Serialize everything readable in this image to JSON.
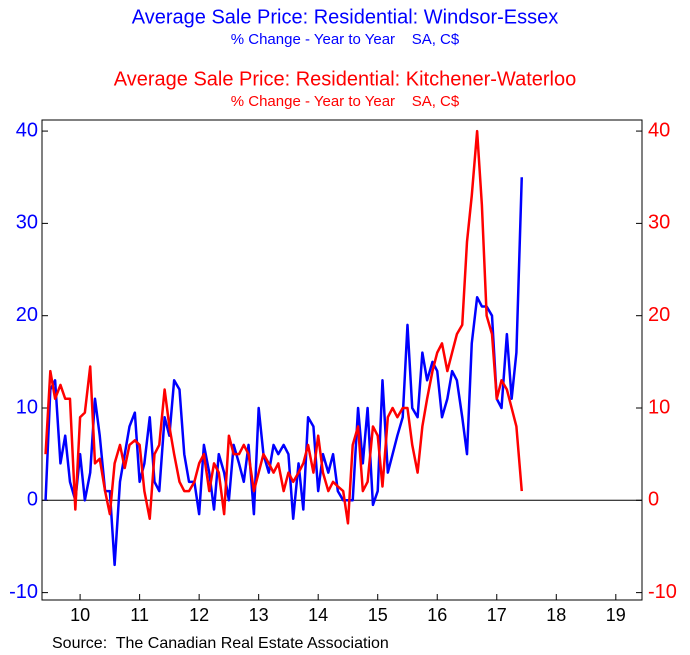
{
  "chart_data": {
    "type": "line",
    "source": "Source:  The Canadian Real Estate Association",
    "x": [
      2009.92,
      2010.0,
      2010.08,
      2010.17,
      2010.25,
      2010.33,
      2010.42,
      2010.5,
      2010.58,
      2010.67,
      2010.75,
      2010.83,
      2010.92,
      2011.0,
      2011.08,
      2011.17,
      2011.25,
      2011.33,
      2011.42,
      2011.5,
      2011.58,
      2011.67,
      2011.75,
      2011.83,
      2011.92,
      2012.0,
      2012.08,
      2012.17,
      2012.25,
      2012.33,
      2012.42,
      2012.5,
      2012.58,
      2012.67,
      2012.75,
      2012.83,
      2012.92,
      2013.0,
      2013.08,
      2013.17,
      2013.25,
      2013.33,
      2013.42,
      2013.5,
      2013.58,
      2013.67,
      2013.75,
      2013.83,
      2013.92,
      2014.0,
      2014.08,
      2014.17,
      2014.25,
      2014.33,
      2014.42,
      2014.5,
      2014.58,
      2014.67,
      2014.75,
      2014.83,
      2014.92,
      2015.0,
      2015.08,
      2015.17,
      2015.25,
      2015.33,
      2015.42,
      2015.5,
      2015.58,
      2015.67,
      2015.75,
      2015.83,
      2015.92,
      2016.0,
      2016.08,
      2016.17,
      2016.25,
      2016.33,
      2016.42,
      2016.5,
      2016.58,
      2016.67,
      2016.75,
      2016.83,
      2016.92,
      2017.0,
      2017.08,
      2017.17,
      2017.25,
      2017.33,
      2017.42,
      2017.5,
      2017.58,
      2017.67,
      2017.75,
      2017.83,
      2017.92
    ],
    "series": [
      {
        "name": "Average Sale Price: Residential: Windsor-Essex",
        "subtitle": "% Change - Year to Year    SA, C$",
        "color": "#0000ff",
        "axis": "y",
        "values": [
          0,
          12,
          13,
          4,
          7,
          2,
          0,
          5,
          0,
          3,
          11,
          7,
          1,
          1,
          -7,
          2,
          5,
          8,
          9.5,
          2,
          4,
          9,
          2,
          1,
          9,
          7,
          13,
          12,
          5,
          2,
          2,
          -1.5,
          6,
          3,
          -1,
          5,
          3,
          0,
          6,
          4,
          2,
          6,
          -1.5,
          10,
          5,
          3,
          6,
          5,
          6,
          5,
          -2,
          4,
          -1,
          9,
          8,
          1,
          5,
          3,
          5,
          1,
          0,
          0,
          0,
          10,
          4,
          10,
          -0.5,
          1,
          13,
          3,
          5,
          7,
          9,
          19,
          10,
          9,
          16,
          13,
          15,
          14,
          9,
          11,
          14,
          13,
          9,
          5,
          17,
          22,
          21,
          21,
          20,
          11,
          10,
          18,
          11,
          16,
          35
        ]
      },
      {
        "name": "Average Sale Price: Residential: Kitchener-Waterloo",
        "subtitle": "% Change - Year to Year    SA, C$",
        "color": "#ff0000",
        "axis": "y2",
        "values": [
          5,
          14,
          11,
          12.5,
          11,
          11,
          -1,
          9,
          9.5,
          14.5,
          4,
          4.5,
          1,
          -1.5,
          4,
          6,
          3.5,
          6,
          6.5,
          6,
          1,
          -2,
          5,
          6,
          12,
          8,
          5,
          2,
          1,
          1,
          2,
          4,
          5,
          1,
          4,
          3,
          -1.5,
          7,
          5,
          5,
          6,
          5,
          1,
          3,
          5,
          4,
          3,
          4,
          1,
          3,
          2,
          3,
          4,
          6,
          3,
          7,
          3,
          1,
          2,
          1.5,
          1,
          -2.5,
          6,
          8,
          1,
          2,
          8,
          7,
          1.5,
          9,
          10,
          9,
          10,
          10,
          6,
          3,
          8,
          11,
          14,
          16,
          17,
          14,
          16,
          18,
          19,
          28,
          33,
          40,
          32,
          20,
          18,
          11,
          13,
          12,
          10,
          8,
          1
        ]
      }
    ],
    "xlim": [
      2009.86,
      2019.94
    ],
    "xticks": [
      {
        "value": 2010.5,
        "label": "10"
      },
      {
        "value": 2011.5,
        "label": "11"
      },
      {
        "value": 2012.5,
        "label": "12"
      },
      {
        "value": 2013.5,
        "label": "13"
      },
      {
        "value": 2014.5,
        "label": "14"
      },
      {
        "value": 2015.5,
        "label": "15"
      },
      {
        "value": 2016.5,
        "label": "16"
      },
      {
        "value": 2017.5,
        "label": "17"
      },
      {
        "value": 2018.5,
        "label": "18"
      },
      {
        "value": 2019.5,
        "label": "19"
      }
    ],
    "ylim": [
      -10.8,
      41.2
    ],
    "yticks": [
      -10,
      0,
      10,
      20,
      30,
      40
    ],
    "y2lim": [
      -10.8,
      41.2
    ],
    "y2ticks": [
      -10,
      0,
      10,
      20,
      30,
      40
    ]
  }
}
